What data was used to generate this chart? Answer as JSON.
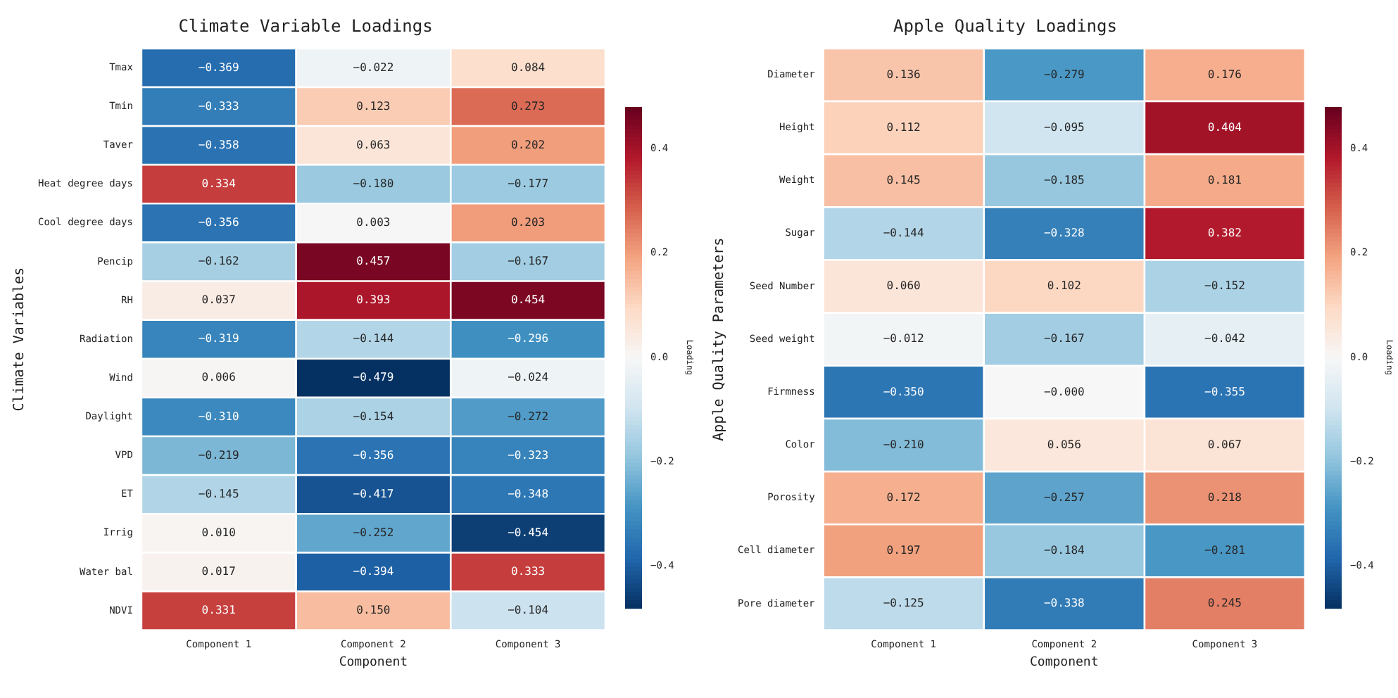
{
  "chart_data": [
    {
      "type": "heatmap",
      "title": "Climate Variable Loadings",
      "xlabel": "Component",
      "ylabel": "Climate Variables",
      "clabel": "Loading",
      "categories": [
        "Component 1",
        "Component 2",
        "Component 3"
      ],
      "y_categories": [
        "Tmax",
        "Tmin",
        "Taver",
        "Heat degree days",
        "Cool degree days",
        "Pencip",
        "RH",
        "Radiation",
        "Wind",
        "Daylight",
        "VPD",
        "ET",
        "Irrig",
        "Water bal",
        "NDVI"
      ],
      "cells": [
        [
          -0.369,
          -0.022,
          0.084
        ],
        [
          -0.333,
          0.123,
          0.273
        ],
        [
          -0.358,
          0.063,
          0.202
        ],
        [
          0.334,
          -0.18,
          -0.177
        ],
        [
          -0.356,
          0.003,
          0.203
        ],
        [
          -0.162,
          0.457,
          -0.167
        ],
        [
          0.037,
          0.393,
          0.454
        ],
        [
          -0.319,
          -0.144,
          -0.296
        ],
        [
          0.006,
          -0.479,
          -0.024
        ],
        [
          -0.31,
          -0.154,
          -0.272
        ],
        [
          -0.219,
          -0.356,
          -0.323
        ],
        [
          -0.145,
          -0.417,
          -0.348
        ],
        [
          0.01,
          -0.252,
          -0.454
        ],
        [
          0.017,
          -0.394,
          0.333
        ],
        [
          0.331,
          0.15,
          -0.104
        ]
      ],
      "cell_labels": [
        [
          "−0.369",
          "−0.022",
          "0.084"
        ],
        [
          "−0.333",
          "0.123",
          "0.273"
        ],
        [
          "−0.358",
          "0.063",
          "0.202"
        ],
        [
          "0.334",
          "−0.180",
          "−0.177"
        ],
        [
          "−0.356",
          "0.003",
          "0.203"
        ],
        [
          "−0.162",
          "0.457",
          "−0.167"
        ],
        [
          "0.037",
          "0.393",
          "0.454"
        ],
        [
          "−0.319",
          "−0.144",
          "−0.296"
        ],
        [
          "0.006",
          "−0.479",
          "−0.024"
        ],
        [
          "−0.310",
          "−0.154",
          "−0.272"
        ],
        [
          "−0.219",
          "−0.356",
          "−0.323"
        ],
        [
          "−0.145",
          "−0.417",
          "−0.348"
        ],
        [
          "0.010",
          "−0.252",
          "−0.454"
        ],
        [
          "0.017",
          "−0.394",
          "0.333"
        ],
        [
          "0.331",
          "0.150",
          "−0.104"
        ]
      ],
      "clim": [
        -0.48,
        0.48
      ],
      "cticks": [
        {
          "value": -0.4,
          "label": "−0.4"
        },
        {
          "value": -0.2,
          "label": "−0.2"
        },
        {
          "value": 0,
          "label": "0.0"
        },
        {
          "value": 0.2,
          "label": "0.2"
        },
        {
          "value": 0.4,
          "label": "0.4"
        }
      ]
    },
    {
      "type": "heatmap",
      "title": "Apple Quality Loadings",
      "xlabel": "Component",
      "ylabel": "Apple Quality Parameters",
      "clabel": "Loading",
      "categories": [
        "Component 1",
        "Component 2",
        "Component 3"
      ],
      "y_categories": [
        "Diameter",
        "Height",
        "Weight",
        "Sugar",
        "Seed Number",
        "Seed weight",
        "Firmness",
        "Color",
        "Porosity",
        "Cell diameter",
        "Pore diameter"
      ],
      "cells": [
        [
          0.136,
          -0.279,
          0.176
        ],
        [
          0.112,
          -0.095,
          0.404
        ],
        [
          0.145,
          -0.185,
          0.181
        ],
        [
          -0.144,
          -0.328,
          0.382
        ],
        [
          0.06,
          0.102,
          -0.152
        ],
        [
          -0.012,
          -0.167,
          -0.042
        ],
        [
          -0.35,
          0.0,
          -0.355
        ],
        [
          -0.21,
          0.056,
          0.067
        ],
        [
          0.172,
          -0.257,
          0.218
        ],
        [
          0.197,
          -0.184,
          -0.281
        ],
        [
          -0.125,
          -0.338,
          0.245
        ]
      ],
      "cell_labels": [
        [
          "0.136",
          "−0.279",
          "0.176"
        ],
        [
          "0.112",
          "−0.095",
          "0.404"
        ],
        [
          "0.145",
          "−0.185",
          "0.181"
        ],
        [
          "−0.144",
          "−0.328",
          "0.382"
        ],
        [
          "0.060",
          "0.102",
          "−0.152"
        ],
        [
          "−0.012",
          "−0.167",
          "−0.042"
        ],
        [
          "−0.350",
          "−0.000",
          "−0.355"
        ],
        [
          "−0.210",
          "0.056",
          "0.067"
        ],
        [
          "0.172",
          "−0.257",
          "0.218"
        ],
        [
          "0.197",
          "−0.184",
          "−0.281"
        ],
        [
          "−0.125",
          "−0.338",
          "0.245"
        ]
      ],
      "clim": [
        -0.48,
        0.48
      ],
      "cticks": [
        {
          "value": -0.4,
          "label": "−0.4"
        },
        {
          "value": -0.2,
          "label": "−0.2"
        },
        {
          "value": 0,
          "label": "0.0"
        },
        {
          "value": 0.2,
          "label": "0.2"
        },
        {
          "value": 0.4,
          "label": "0.4"
        }
      ]
    }
  ]
}
